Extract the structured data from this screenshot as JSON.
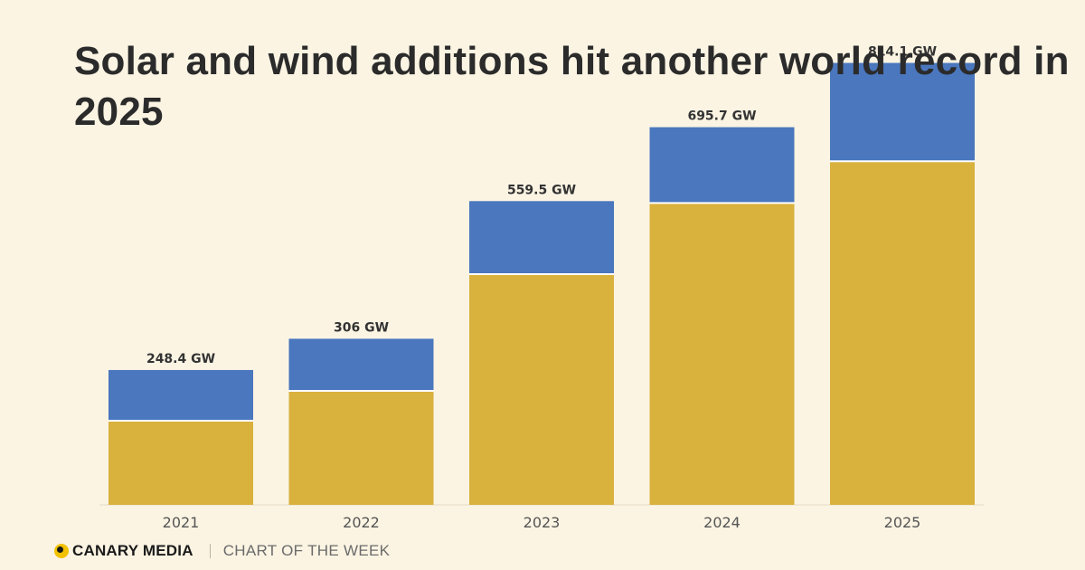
{
  "title": "Solar and wind additions hit another world record in 2025",
  "footer": {
    "brand": "CANARY MEDIA",
    "tagline": "CHART OF THE WEEK"
  },
  "colors": {
    "background": "#fbf4e3",
    "solar": "#d9b13d",
    "wind": "#4a77bd",
    "brand_dot": "#f2c200"
  },
  "chart_data": {
    "type": "bar",
    "stacked": true,
    "categories": [
      "2021",
      "2022",
      "2023",
      "2024",
      "2025"
    ],
    "series": [
      {
        "color": "#d9b13d",
        "values": [
          155,
          210,
          425,
          556,
          633
        ]
      },
      {
        "color": "#4a77bd",
        "values": [
          93.4,
          96,
          134.5,
          139.7,
          181.1
        ]
      }
    ],
    "totals": [
      248.4,
      306,
      559.5,
      695.7,
      814.1
    ],
    "total_labels": [
      "248.4 GW",
      "306 GW",
      "559.5 GW",
      "695.7 GW",
      "814.1 GW"
    ],
    "ylim": [
      0,
      900
    ],
    "grid": false,
    "legend": "none"
  }
}
